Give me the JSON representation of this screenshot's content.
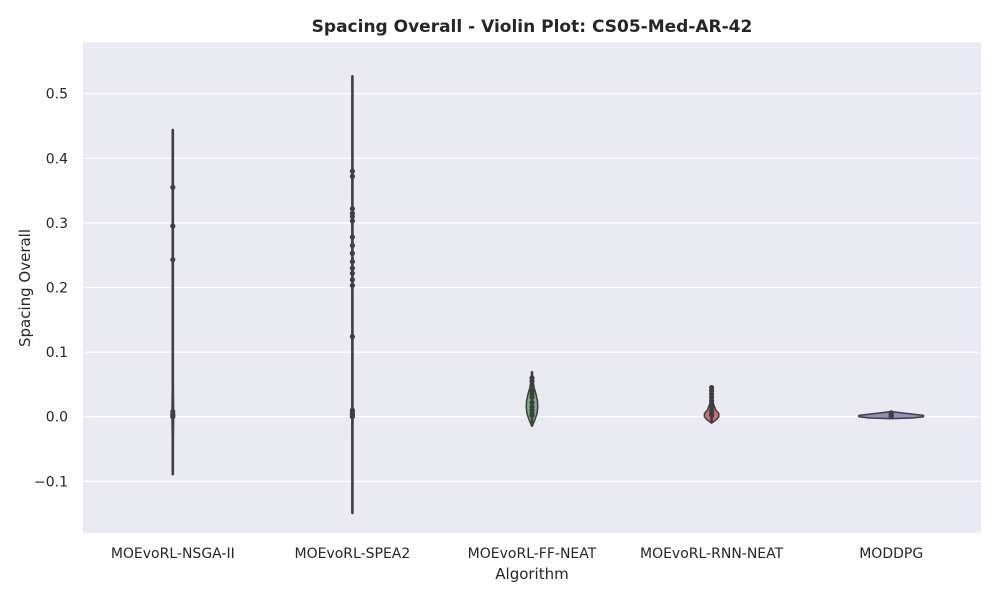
{
  "chart_data": {
    "type": "violin",
    "title": "Spacing Overall - Violin Plot: CS05-Med-AR-42",
    "xlabel": "Algorithm",
    "ylabel": "Spacing Overall",
    "ylim": [
      -0.18,
      0.58
    ],
    "yticks": [
      -0.1,
      0.0,
      0.1,
      0.2,
      0.3,
      0.4,
      0.5
    ],
    "ytick_labels": [
      "−0.1",
      "0.0",
      "0.1",
      "0.2",
      "0.3",
      "0.4",
      "0.5"
    ],
    "grid": true,
    "categories": [
      "MOEvoRL-NSGA-II",
      "MOEvoRL-SPEA2",
      "MOEvoRL-FF-NEAT",
      "MOEvoRL-RNN-NEAT",
      "MODDPG"
    ],
    "series": [
      {
        "color": "#4c72b0",
        "min": -0.09,
        "max": 0.445,
        "profile": [
          [
            -0.09,
            0.0
          ],
          [
            -0.05,
            0.006
          ],
          [
            -0.02,
            0.009
          ],
          [
            0.0,
            0.012
          ],
          [
            0.03,
            0.009
          ],
          [
            0.06,
            0.006
          ],
          [
            0.1,
            0.003
          ],
          [
            0.2,
            0.002
          ],
          [
            0.3,
            0.0015
          ],
          [
            0.445,
            0.0
          ]
        ],
        "points": [
          0.355,
          0.295,
          0.243,
          0.008,
          0.004,
          0.002,
          0.0
        ]
      },
      {
        "color": "#dd8452",
        "min": -0.15,
        "max": 0.528,
        "profile": [
          [
            -0.15,
            0.0
          ],
          [
            -0.05,
            0.003
          ],
          [
            0.0,
            0.005
          ],
          [
            0.1,
            0.005
          ],
          [
            0.2,
            0.005
          ],
          [
            0.3,
            0.005
          ],
          [
            0.38,
            0.004
          ],
          [
            0.528,
            0.0
          ]
        ],
        "points": [
          0.38,
          0.372,
          0.322,
          0.315,
          0.31,
          0.303,
          0.278,
          0.265,
          0.253,
          0.24,
          0.23,
          0.222,
          0.212,
          0.203,
          0.124,
          0.01,
          0.007,
          0.004,
          0.002,
          0.0
        ]
      },
      {
        "color": "#55a868",
        "min": -0.015,
        "max": 0.07,
        "profile": [
          [
            -0.015,
            0.0
          ],
          [
            -0.005,
            0.04
          ],
          [
            0.005,
            0.07
          ],
          [
            0.015,
            0.08
          ],
          [
            0.025,
            0.075
          ],
          [
            0.035,
            0.055
          ],
          [
            0.045,
            0.03
          ],
          [
            0.055,
            0.015
          ],
          [
            0.07,
            0.0
          ]
        ],
        "points": [
          0.06,
          0.055,
          0.04,
          0.035,
          0.03,
          0.022,
          0.015,
          0.01,
          0.005,
          0.002
        ]
      },
      {
        "color": "#c44e52",
        "min": -0.01,
        "max": 0.048,
        "profile": [
          [
            -0.01,
            0.0
          ],
          [
            -0.005,
            0.06
          ],
          [
            0.0,
            0.1
          ],
          [
            0.005,
            0.1
          ],
          [
            0.01,
            0.06
          ],
          [
            0.02,
            0.025
          ],
          [
            0.03,
            0.012
          ],
          [
            0.048,
            0.0
          ]
        ],
        "points": [
          0.045,
          0.04,
          0.035,
          0.03,
          0.025,
          0.02,
          0.015,
          0.01,
          0.005,
          0.002
        ]
      },
      {
        "color": "#8172b2",
        "min": -0.003,
        "max": 0.008,
        "profile": [
          [
            -0.003,
            0.0
          ],
          [
            -0.002,
            0.3
          ],
          [
            0.0,
            0.45
          ],
          [
            0.002,
            0.45
          ],
          [
            0.004,
            0.3
          ],
          [
            0.006,
            0.15
          ],
          [
            0.008,
            0.0
          ]
        ],
        "points": [
          0.006,
          0.004,
          0.002,
          0.001,
          0.0
        ]
      }
    ]
  }
}
